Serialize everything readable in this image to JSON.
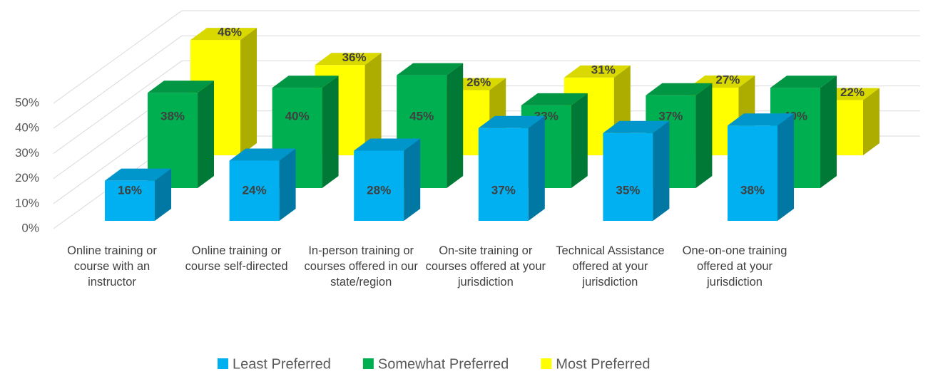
{
  "chart_data": {
    "type": "bar3d",
    "categories": [
      "Online training or course with an instructor",
      "Online training or course self-directed",
      "In-person training or courses offered in our state/region",
      "On-site training or courses offered at your jurisdiction",
      "Technical Assistance offered at your jurisdiction",
      "One-on-one training offered at your jurisdiction"
    ],
    "series": [
      {
        "name": "Least Preferred",
        "color": "#00b0f0",
        "values": [
          16,
          24,
          28,
          37,
          35,
          38
        ],
        "value_labels": [
          "16%",
          "24%",
          "28%",
          "37%",
          "35%",
          "38%"
        ]
      },
      {
        "name": "Somewhat Preferred",
        "color": "#00b050",
        "values": [
          38,
          40,
          45,
          33,
          37,
          40
        ],
        "value_labels": [
          "38%",
          "40%",
          "45%",
          "33%",
          "37%",
          "40%"
        ]
      },
      {
        "name": "Most Preferred",
        "color": "#ffff00",
        "values": [
          46,
          36,
          26,
          31,
          27,
          22
        ],
        "value_labels": [
          "46%",
          "36%",
          "26%",
          "31%",
          "27%",
          "22%"
        ]
      }
    ],
    "ylim": [
      0,
      50
    ],
    "yticks": [
      {
        "value": 0,
        "label": "0%"
      },
      {
        "value": 10,
        "label": "10%"
      },
      {
        "value": 20,
        "label": "20%"
      },
      {
        "value": 30,
        "label": "30%"
      },
      {
        "value": 40,
        "label": "40%"
      },
      {
        "value": 50,
        "label": "50%"
      }
    ],
    "grid": true,
    "legend": "bottom"
  }
}
